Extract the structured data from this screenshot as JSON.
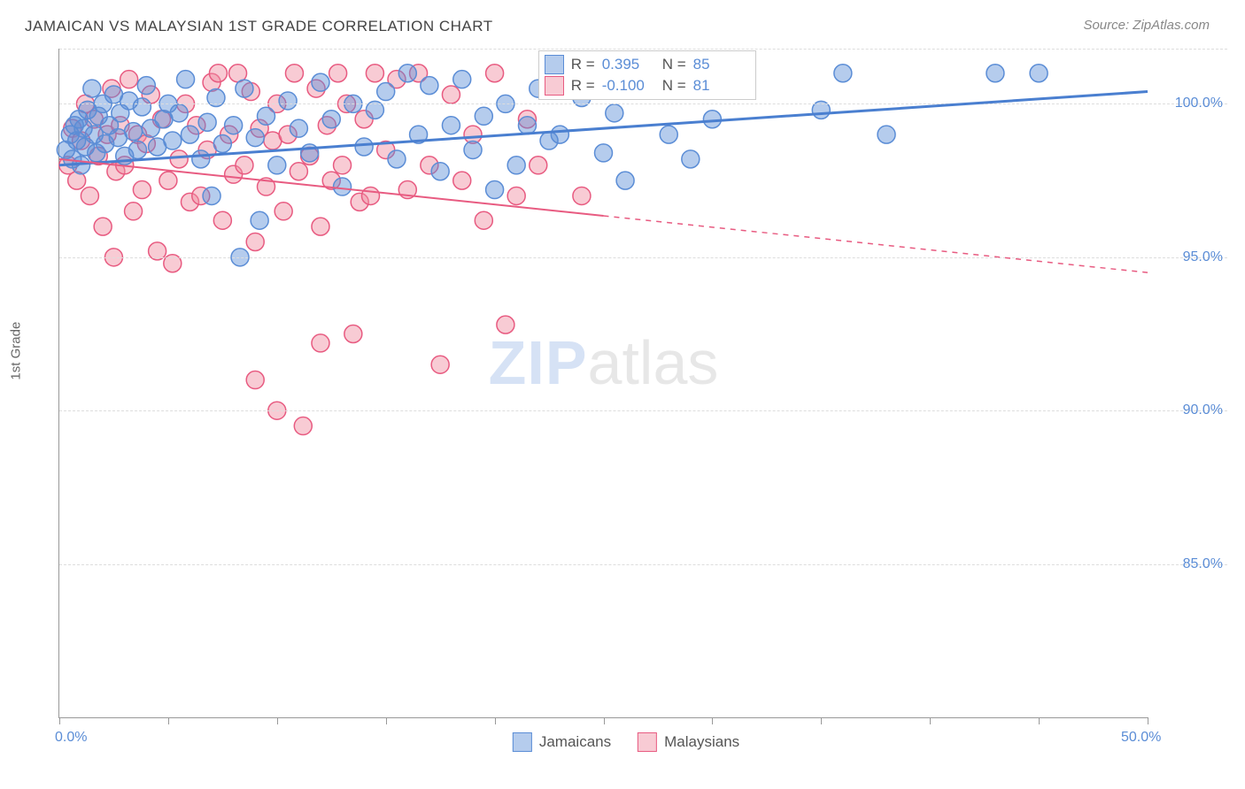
{
  "title": "JAMAICAN VS MALAYSIAN 1ST GRADE CORRELATION CHART",
  "source": "Source: ZipAtlas.com",
  "ylabel": "1st Grade",
  "watermark": {
    "part1": "ZIP",
    "part2": "atlas"
  },
  "chart": {
    "type": "scatter",
    "xlim": [
      0,
      50
    ],
    "ylim": [
      80,
      101.8
    ],
    "x_format": "percent",
    "y_format": "percent",
    "xtick_positions": [
      0,
      5,
      10,
      15,
      20,
      25,
      30,
      35,
      40,
      45,
      50
    ],
    "xtick_labels": {
      "0": "0.0%",
      "50": "50.0%"
    },
    "ytick_positions": [
      85,
      90,
      95,
      100
    ],
    "ytick_labels": {
      "85": "85.0%",
      "90": "90.0%",
      "95": "95.0%",
      "100": "100.0%"
    },
    "grid_color": "#dddddd",
    "axis_color": "#999999",
    "background_color": "#ffffff",
    "marker_radius": 10,
    "marker_opacity": 0.45,
    "line_width": 3,
    "series": [
      {
        "name": "Jamaicans",
        "stroke": "#4a7fd0",
        "fill": "rgba(91,141,214,0.45)",
        "border": "#5b8dd6",
        "R": "0.395",
        "N": "85",
        "regression": {
          "x0": 0,
          "y0": 98.0,
          "x1": 50,
          "y1": 100.4,
          "dash_from_x": null
        },
        "points": [
          [
            0.3,
            98.5
          ],
          [
            0.5,
            99.0
          ],
          [
            0.6,
            98.2
          ],
          [
            0.7,
            99.3
          ],
          [
            0.8,
            98.8
          ],
          [
            0.9,
            99.5
          ],
          [
            1.0,
            98.0
          ],
          [
            1.1,
            99.2
          ],
          [
            1.2,
            98.6
          ],
          [
            1.3,
            99.8
          ],
          [
            1.5,
            100.5
          ],
          [
            1.6,
            99.0
          ],
          [
            1.7,
            98.4
          ],
          [
            1.8,
            99.6
          ],
          [
            2.0,
            100.0
          ],
          [
            2.1,
            98.7
          ],
          [
            2.3,
            99.3
          ],
          [
            2.5,
            100.3
          ],
          [
            2.7,
            98.9
          ],
          [
            2.8,
            99.7
          ],
          [
            3.0,
            98.3
          ],
          [
            3.2,
            100.1
          ],
          [
            3.4,
            99.1
          ],
          [
            3.6,
            98.5
          ],
          [
            3.8,
            99.9
          ],
          [
            4.0,
            100.6
          ],
          [
            4.2,
            99.2
          ],
          [
            4.5,
            98.6
          ],
          [
            4.8,
            99.5
          ],
          [
            5.0,
            100.0
          ],
          [
            5.2,
            98.8
          ],
          [
            5.5,
            99.7
          ],
          [
            5.8,
            100.8
          ],
          [
            6.0,
            99.0
          ],
          [
            6.5,
            98.2
          ],
          [
            6.8,
            99.4
          ],
          [
            7.0,
            97.0
          ],
          [
            7.2,
            100.2
          ],
          [
            7.5,
            98.7
          ],
          [
            8.0,
            99.3
          ],
          [
            8.3,
            95.0
          ],
          [
            8.5,
            100.5
          ],
          [
            9.0,
            98.9
          ],
          [
            9.2,
            96.2
          ],
          [
            9.5,
            99.6
          ],
          [
            10.0,
            98.0
          ],
          [
            10.5,
            100.1
          ],
          [
            11.0,
            99.2
          ],
          [
            11.5,
            98.4
          ],
          [
            12.0,
            100.7
          ],
          [
            12.5,
            99.5
          ],
          [
            13.0,
            97.3
          ],
          [
            13.5,
            100.0
          ],
          [
            14.0,
            98.6
          ],
          [
            14.5,
            99.8
          ],
          [
            15.0,
            100.4
          ],
          [
            15.5,
            98.2
          ],
          [
            16.0,
            101.0
          ],
          [
            16.5,
            99.0
          ],
          [
            17.0,
            100.6
          ],
          [
            17.5,
            97.8
          ],
          [
            18.0,
            99.3
          ],
          [
            18.5,
            100.8
          ],
          [
            19.0,
            98.5
          ],
          [
            19.5,
            99.6
          ],
          [
            20.0,
            97.2
          ],
          [
            20.5,
            100.0
          ],
          [
            21.0,
            98.0
          ],
          [
            21.5,
            99.3
          ],
          [
            22.0,
            100.5
          ],
          [
            22.5,
            98.8
          ],
          [
            23.0,
            99.0
          ],
          [
            24.0,
            100.2
          ],
          [
            25.0,
            98.4
          ],
          [
            25.5,
            99.7
          ],
          [
            26.0,
            97.5
          ],
          [
            27.0,
            100.8
          ],
          [
            28.0,
            99.0
          ],
          [
            29.0,
            98.2
          ],
          [
            30.0,
            99.5
          ],
          [
            35.0,
            99.8
          ],
          [
            36.0,
            101.0
          ],
          [
            38.0,
            99.0
          ],
          [
            43.0,
            101.0
          ],
          [
            45.0,
            101.0
          ]
        ]
      },
      {
        "name": "Malaysians",
        "stroke": "#e85b81",
        "fill": "rgba(240,140,160,0.45)",
        "border": "#e85b81",
        "R": "-0.100",
        "N": "81",
        "regression": {
          "x0": 0,
          "y0": 98.2,
          "x1": 50,
          "y1": 94.5,
          "dash_from_x": 25
        },
        "points": [
          [
            0.4,
            98.0
          ],
          [
            0.6,
            99.2
          ],
          [
            0.8,
            97.5
          ],
          [
            1.0,
            98.8
          ],
          [
            1.2,
            100.0
          ],
          [
            1.4,
            97.0
          ],
          [
            1.6,
            99.5
          ],
          [
            1.8,
            98.3
          ],
          [
            2.0,
            96.0
          ],
          [
            2.2,
            99.0
          ],
          [
            2.4,
            100.5
          ],
          [
            2.5,
            95.0
          ],
          [
            2.6,
            97.8
          ],
          [
            2.8,
            99.3
          ],
          [
            3.0,
            98.0
          ],
          [
            3.2,
            100.8
          ],
          [
            3.4,
            96.5
          ],
          [
            3.6,
            99.0
          ],
          [
            3.8,
            97.2
          ],
          [
            4.0,
            98.7
          ],
          [
            4.2,
            100.3
          ],
          [
            4.5,
            95.2
          ],
          [
            4.7,
            99.5
          ],
          [
            5.0,
            97.5
          ],
          [
            5.2,
            94.8
          ],
          [
            5.5,
            98.2
          ],
          [
            5.8,
            100.0
          ],
          [
            6.0,
            96.8
          ],
          [
            6.3,
            99.3
          ],
          [
            6.5,
            97.0
          ],
          [
            6.8,
            98.5
          ],
          [
            7.0,
            100.7
          ],
          [
            7.3,
            101.0
          ],
          [
            7.5,
            96.2
          ],
          [
            7.8,
            99.0
          ],
          [
            8.0,
            97.7
          ],
          [
            8.2,
            101.0
          ],
          [
            8.5,
            98.0
          ],
          [
            8.8,
            100.4
          ],
          [
            9.0,
            95.5
          ],
          [
            9.0,
            91.0
          ],
          [
            9.2,
            99.2
          ],
          [
            9.5,
            97.3
          ],
          [
            9.8,
            98.8
          ],
          [
            10.0,
            100.0
          ],
          [
            10.0,
            90.0
          ],
          [
            10.3,
            96.5
          ],
          [
            10.5,
            99.0
          ],
          [
            10.8,
            101.0
          ],
          [
            11.0,
            97.8
          ],
          [
            11.2,
            89.5
          ],
          [
            11.5,
            98.3
          ],
          [
            11.8,
            100.5
          ],
          [
            12.0,
            96.0
          ],
          [
            12.0,
            92.2
          ],
          [
            12.3,
            99.3
          ],
          [
            12.5,
            97.5
          ],
          [
            12.8,
            101.0
          ],
          [
            13.0,
            98.0
          ],
          [
            13.2,
            100.0
          ],
          [
            13.5,
            92.5
          ],
          [
            13.8,
            96.8
          ],
          [
            14.0,
            99.5
          ],
          [
            14.3,
            97.0
          ],
          [
            14.5,
            101.0
          ],
          [
            15.0,
            98.5
          ],
          [
            15.5,
            100.8
          ],
          [
            16.0,
            97.2
          ],
          [
            16.5,
            101.0
          ],
          [
            17.0,
            98.0
          ],
          [
            17.5,
            91.5
          ],
          [
            18.0,
            100.3
          ],
          [
            18.5,
            97.5
          ],
          [
            19.0,
            99.0
          ],
          [
            19.5,
            96.2
          ],
          [
            20.0,
            101.0
          ],
          [
            20.5,
            92.8
          ],
          [
            21.0,
            97.0
          ],
          [
            21.5,
            99.5
          ],
          [
            22.0,
            98.0
          ],
          [
            24.0,
            97.0
          ]
        ]
      }
    ]
  },
  "legend_top": {
    "r_label": "R =",
    "n_label": "N ="
  },
  "legend_bottom": {
    "items": [
      "Jamaicans",
      "Malaysians"
    ]
  }
}
